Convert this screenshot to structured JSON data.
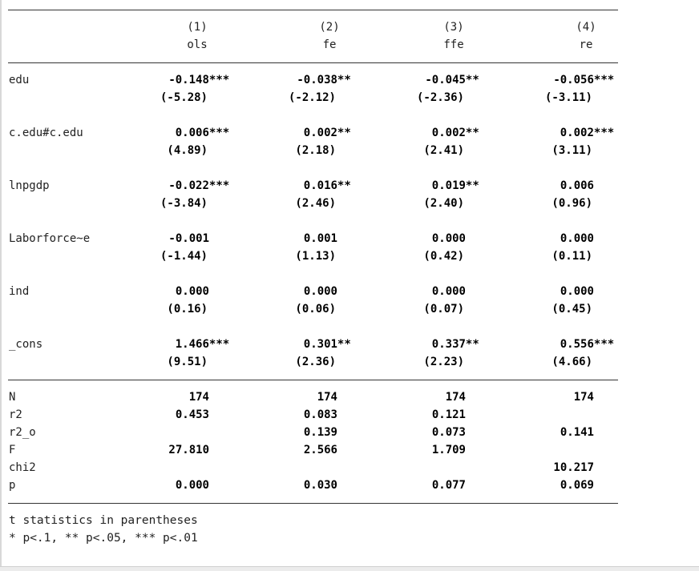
{
  "table": {
    "columns": [
      {
        "number": "(1)",
        "name": "ols"
      },
      {
        "number": "(2)",
        "name": "fe"
      },
      {
        "number": "(3)",
        "name": "ffe"
      },
      {
        "number": "(4)",
        "name": "re"
      }
    ],
    "coef_rows": [
      {
        "label": "edu",
        "coefs": [
          "-0.148***",
          "-0.038**",
          "-0.045**",
          "-0.056***"
        ],
        "tstats": [
          "(-5.28)",
          "(-2.12)",
          "(-2.36)",
          "(-3.11)"
        ]
      },
      {
        "label": "c.edu#c.edu",
        "coefs": [
          "0.006***",
          "0.002**",
          "0.002**",
          "0.002***"
        ],
        "tstats": [
          "(4.89)",
          "(2.18)",
          "(2.41)",
          "(3.11)"
        ]
      },
      {
        "label": "lnpgdp",
        "coefs": [
          "-0.022***",
          "0.016**",
          "0.019**",
          "0.006"
        ],
        "tstats": [
          "(-3.84)",
          "(2.46)",
          "(2.40)",
          "(0.96)"
        ]
      },
      {
        "label": "Laborforce~e",
        "coefs": [
          "-0.001",
          "0.001",
          "0.000",
          "0.000"
        ],
        "tstats": [
          "(-1.44)",
          "(1.13)",
          "(0.42)",
          "(0.11)"
        ]
      },
      {
        "label": "ind",
        "coefs": [
          "0.000",
          "0.000",
          "0.000",
          "0.000"
        ],
        "tstats": [
          "(0.16)",
          "(0.06)",
          "(0.07)",
          "(0.45)"
        ]
      },
      {
        "label": "_cons",
        "coefs": [
          "1.466***",
          "0.301**",
          "0.337**",
          "0.556***"
        ],
        "tstats": [
          "(9.51)",
          "(2.36)",
          "(2.23)",
          "(4.66)"
        ]
      }
    ],
    "stat_rows": [
      {
        "label": "N",
        "values": [
          "174",
          "174",
          "174",
          "174"
        ]
      },
      {
        "label": "r2",
        "values": [
          "0.453",
          "0.083",
          "0.121",
          ""
        ]
      },
      {
        "label": "r2_o",
        "values": [
          "",
          "0.139",
          "0.073",
          "0.141"
        ]
      },
      {
        "label": "F",
        "values": [
          "27.810",
          "2.566",
          "1.709",
          ""
        ]
      },
      {
        "label": "chi2",
        "values": [
          "",
          "",
          "",
          "10.217"
        ]
      },
      {
        "label": "p",
        "values": [
          "0.000",
          "0.030",
          "0.077",
          "0.069"
        ]
      }
    ],
    "notes": [
      "t statistics in parentheses",
      "* p<.1, ** p<.05, *** p<.01"
    ]
  }
}
